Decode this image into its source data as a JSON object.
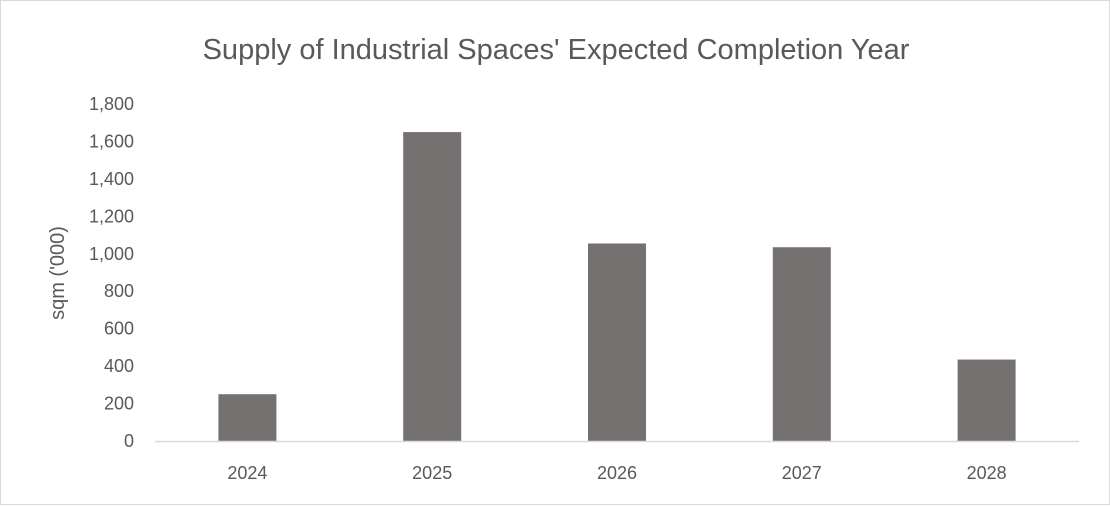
{
  "chart_data": {
    "type": "bar",
    "title": "Supply of Industrial Spaces' Expected Completion Year",
    "xlabel": "",
    "ylabel": "sqm ('000)",
    "categories": [
      "2024",
      "2025",
      "2026",
      "2027",
      "2028"
    ],
    "values": [
      250,
      1650,
      1055,
      1035,
      435
    ],
    "ylim": [
      0,
      1800
    ],
    "yticks": [
      0,
      200,
      400,
      600,
      800,
      1000,
      1200,
      1400,
      1600,
      1800
    ],
    "ytick_labels": [
      "0",
      "200",
      "400",
      "600",
      "800",
      "1,000",
      "1,200",
      "1,400",
      "1,600",
      "1,800"
    ],
    "grid": false,
    "legend": "none",
    "bar_color": "#767171",
    "axis_color": "#d9d9d9",
    "text_color": "#595959"
  }
}
